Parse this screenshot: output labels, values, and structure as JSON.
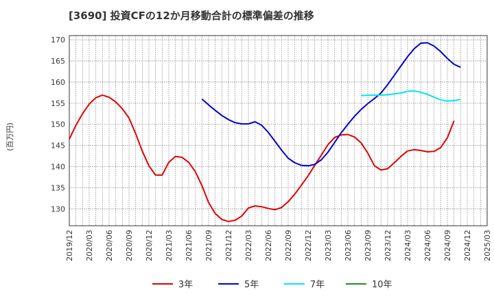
{
  "chart_data": {
    "type": "line",
    "title": "[3690]  投資CFの12か月移動合計の標準偏差の推移",
    "ylabel": "(百万円)",
    "xlabel": "",
    "ylim": [
      126,
      171
    ],
    "yticks": [
      130,
      135,
      140,
      145,
      150,
      155,
      160,
      165,
      170
    ],
    "xticks": [
      "2019/12",
      "2020/03",
      "2020/06",
      "2020/09",
      "2020/12",
      "2021/03",
      "2021/06",
      "2021/09",
      "2021/12",
      "2022/03",
      "2022/06",
      "2022/09",
      "2022/12",
      "2023/03",
      "2023/06",
      "2023/09",
      "2023/12",
      "2024/03",
      "2024/06",
      "2024/09",
      "2024/12",
      "2025/03"
    ],
    "grid": true,
    "legend_position": "bottom",
    "series": [
      {
        "name": "3年",
        "color": "#e00000",
        "start": "2019/12",
        "values": [
          146.5,
          149.8,
          152.5,
          154.8,
          156.3,
          156.9,
          156.4,
          155.3,
          153.7,
          151.5,
          147.8,
          143.7,
          140.2,
          138.0,
          138.0,
          141.0,
          142.4,
          142.2,
          141.0,
          138.8,
          135.5,
          131.5,
          128.9,
          127.5,
          127.0,
          127.3,
          128.3,
          130.2,
          130.7,
          130.5,
          130.1,
          129.8,
          130.3,
          131.7,
          133.5,
          135.6,
          137.8,
          140.3,
          142.7,
          145.2,
          146.9,
          147.5,
          147.6,
          147.0,
          145.6,
          143.2,
          140.2,
          139.2,
          139.5,
          140.9,
          142.4,
          143.7,
          144.0,
          143.8,
          143.5,
          143.6,
          144.5,
          146.8,
          150.8
        ]
      },
      {
        "name": "5年",
        "color": "#0000cc",
        "start": "2021/08",
        "values": [
          156.0,
          154.6,
          153.3,
          152.1,
          151.1,
          150.4,
          150.1,
          150.1,
          150.6,
          149.8,
          148.1,
          146.0,
          143.9,
          142.0,
          140.9,
          140.3,
          140.2,
          140.5,
          141.6,
          143.4,
          145.7,
          148.0,
          150.0,
          151.9,
          153.5,
          154.9,
          156.1,
          157.4,
          159.4,
          161.6,
          163.8,
          166.0,
          167.9,
          169.2,
          169.3,
          168.5,
          167.2,
          165.6,
          164.2,
          163.5
        ]
      },
      {
        "name": "7年",
        "color": "#00e5ee",
        "start": "2023/08",
        "values": [
          156.8,
          156.9,
          156.9,
          156.9,
          157.0,
          157.2,
          157.4,
          157.8,
          157.9,
          157.6,
          157.1,
          156.4,
          155.8,
          155.5,
          155.6,
          155.9
        ]
      },
      {
        "name": "10年",
        "color": "#228b22",
        "start": "2024/09",
        "values": []
      }
    ]
  }
}
